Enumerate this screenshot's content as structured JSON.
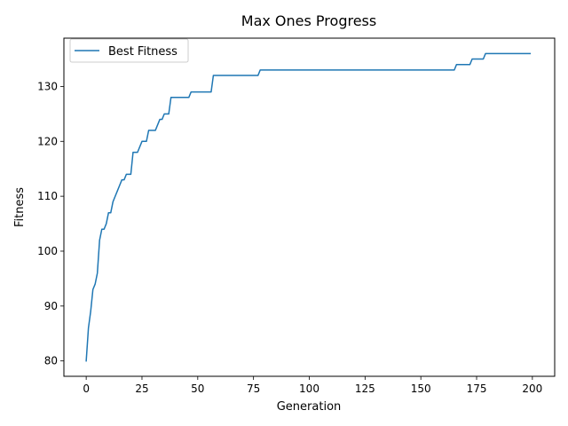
{
  "chart_data": {
    "type": "line",
    "title": "Max Ones Progress",
    "xlabel": "Generation",
    "ylabel": "Fitness",
    "xlim": [
      -10,
      210
    ],
    "ylim": [
      77.2,
      138.8
    ],
    "xticks": [
      0,
      25,
      50,
      75,
      100,
      125,
      150,
      175,
      200
    ],
    "yticks": [
      80,
      90,
      100,
      110,
      120,
      130
    ],
    "grid": false,
    "legend_position": "upper-left",
    "series": [
      {
        "name": "Best Fitness",
        "color": "#1f77b4",
        "steps": [
          [
            0,
            80
          ],
          [
            1,
            86
          ],
          [
            2,
            89
          ],
          [
            3,
            93
          ],
          [
            4,
            94
          ],
          [
            5,
            96
          ],
          [
            6,
            102
          ],
          [
            7,
            104
          ],
          [
            8,
            104
          ],
          [
            9,
            105
          ],
          [
            10,
            107
          ],
          [
            11,
            107
          ],
          [
            12,
            109
          ],
          [
            13,
            110
          ],
          [
            14,
            111
          ],
          [
            15,
            112
          ],
          [
            16,
            113
          ],
          [
            17,
            113
          ],
          [
            18,
            114
          ],
          [
            20,
            114
          ],
          [
            21,
            118
          ],
          [
            23,
            118
          ],
          [
            25,
            120
          ],
          [
            27,
            120
          ],
          [
            28,
            122
          ],
          [
            31,
            122
          ],
          [
            33,
            124
          ],
          [
            34,
            124
          ],
          [
            35,
            125
          ],
          [
            37,
            125
          ],
          [
            38,
            128
          ],
          [
            46,
            128
          ],
          [
            47,
            129
          ],
          [
            56,
            129
          ],
          [
            57,
            132
          ],
          [
            77,
            132
          ],
          [
            78,
            133
          ],
          [
            165,
            133
          ],
          [
            166,
            134
          ],
          [
            172,
            134
          ],
          [
            173,
            135
          ],
          [
            178,
            135
          ],
          [
            179,
            136
          ],
          [
            199,
            136
          ]
        ]
      }
    ]
  }
}
